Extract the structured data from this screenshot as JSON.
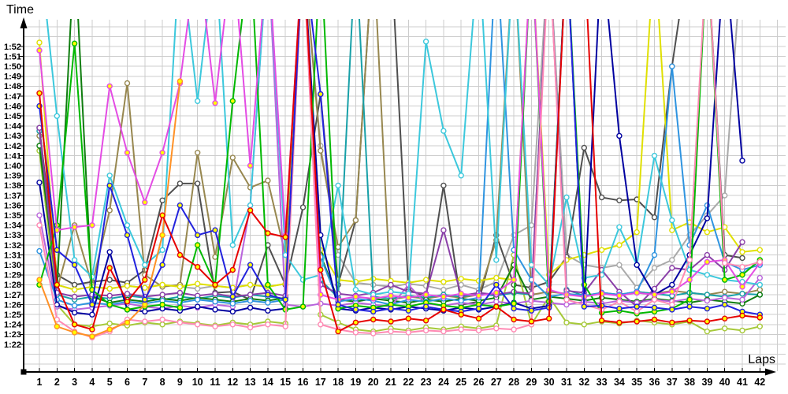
{
  "chart_data": {
    "type": "line",
    "title": "",
    "xlabel": "Laps",
    "ylabel": "Time",
    "x": [
      1,
      2,
      3,
      4,
      5,
      6,
      7,
      8,
      9,
      10,
      11,
      12,
      13,
      14,
      15,
      16,
      17,
      18,
      19,
      20,
      21,
      22,
      23,
      24,
      25,
      26,
      27,
      28,
      29,
      30,
      31,
      32,
      33,
      34,
      35,
      36,
      37,
      38,
      39,
      40,
      41,
      42
    ],
    "y_tick_labels": [
      "1:22",
      "1:23",
      "1:24",
      "1:25",
      "1:26",
      "1:27",
      "1:28",
      "1:29",
      "1:30",
      "1:31",
      "1:32",
      "1:33",
      "1:34",
      "1:35",
      "1:36",
      "1:37",
      "1:38",
      "1:39",
      "1:40",
      "1:41",
      "1:42",
      "1:43",
      "1:44",
      "1:45",
      "1:46",
      "1:47",
      "1:48",
      "1:49",
      "1:50",
      "1:51",
      "1:52"
    ],
    "y_unit": "m:ss (values stored as total seconds)",
    "ylim_seconds": [
      82,
      112
    ],
    "grid": true,
    "legend": "none",
    "note": "Lap-time chart, one line per driver (no legend shown). Values are lap times in seconds (82 = 1:22). Values of 122 represent spikes that go above the visible scale (pit stops / incidents); null = no lap recorded.",
    "layout_hints": {
      "background": "#ffffff",
      "grid_color": "#cccccc",
      "axis_color": "#000000",
      "marker": "open circles on every lap"
    },
    "series": [
      {
        "name": "gray",
        "color": "#a9a9a9",
        "marker_fill": "#ffffff",
        "values": [
          103.5,
          88,
          87.5,
          87.8,
          87.6,
          87.9,
          87.7,
          88,
          87.8,
          87.6,
          87.9,
          87.7,
          88,
          87.8,
          88.1,
          122,
          102,
          91,
          88.2,
          88,
          87.8,
          88.1,
          87.9,
          87.5,
          88,
          87.5,
          88.3,
          93,
          94,
          122,
          91,
          90,
          89.7,
          90,
          87.7,
          89.7,
          90.5,
          93,
          95,
          97,
          122,
          null
        ]
      },
      {
        "name": "charcoal",
        "color": "#4f4f4f",
        "marker_fill": "#ffffff",
        "values": [
          103.8,
          89,
          88,
          88.3,
          88.5,
          88.2,
          89.5,
          96.5,
          98.2,
          98.2,
          87.2,
          87.3,
          86.5,
          92,
          88,
          95.8,
          107.2,
          88,
          94.5,
          122,
          122,
          87.5,
          86.8,
          98,
          86,
          86.3,
          93,
          88,
          87.7,
          88.3,
          90.8,
          101.8,
          96.8,
          96.5,
          96.6,
          94.8,
          110,
          122,
          122,
          91,
          90.7,
          null
        ]
      },
      {
        "name": "olive",
        "color": "#97874f",
        "marker_fill": "#ffffff",
        "values": [
          103,
          87.5,
          94,
          88,
          95.5,
          108.3,
          89,
          87.8,
          88,
          101.3,
          90.8,
          100.8,
          97.8,
          98.5,
          91,
          122,
          101.5,
          91.8,
          94.5,
          122,
          86.5,
          86.8,
          86.6,
          86.9,
          86.7,
          87,
          92.5,
          122,
          87,
          87.3,
          87.1,
          86.9,
          87.2,
          87,
          87.3,
          87.1,
          87.4,
          87.2,
          87,
          87.3,
          87.1,
          87.5
        ]
      },
      {
        "name": "yellow",
        "color": "#e0e000",
        "marker_fill": "#ffffff",
        "values": [
          112.4,
          88,
          87.5,
          87.8,
          87.6,
          87.9,
          87.7,
          88,
          87.8,
          88.1,
          87.9,
          87.7,
          88,
          87.8,
          88.1,
          122,
          91.5,
          88.5,
          88.3,
          88.6,
          88.4,
          88.2,
          88.5,
          88.3,
          88.6,
          88.4,
          88.7,
          88.5,
          122,
          89,
          90.5,
          91,
          91.5,
          92,
          93.3,
          122,
          93.5,
          94.3,
          93.3,
          93.8,
          91.3,
          91.5
        ]
      },
      {
        "name": "lightgreen",
        "color": "#a6c939",
        "marker_fill": "#ffffff",
        "values": [
          101.5,
          86,
          84,
          83.8,
          84.1,
          83.9,
          84.2,
          84,
          84.3,
          84.1,
          83.9,
          84.2,
          84,
          84.3,
          84.1,
          122,
          85,
          84.2,
          83.5,
          83.3,
          83.6,
          83.4,
          83.7,
          83.5,
          83.8,
          83.6,
          83.9,
          91,
          84,
          86.8,
          84.2,
          84,
          84.3,
          84.1,
          84.4,
          84.2,
          84,
          84.3,
          83.3,
          83.6,
          83.4,
          83.8
        ]
      },
      {
        "name": "teal",
        "color": "#18a0a8",
        "marker_fill": "#ffffff",
        "values": [
          103.5,
          87,
          86.5,
          86.8,
          86.6,
          86.9,
          86.7,
          86.5,
          86.8,
          86.6,
          86.9,
          86.7,
          87,
          86.8,
          86.6,
          122,
          88.5,
          86.7,
          122,
          86.8,
          86.6,
          86.9,
          86.7,
          87,
          86.8,
          87.1,
          86.9,
          87.2,
          87,
          122,
          87.5,
          86.9,
          87.2,
          87,
          87.3,
          87.1,
          86.9,
          87.2,
          87,
          86.8,
          87.1,
          87
        ]
      },
      {
        "name": "darkgreen",
        "color": "#0f7d0f",
        "marker_fill": "#ffffff",
        "values": [
          102,
          87.5,
          122,
          86.8,
          86.2,
          86.5,
          86.3,
          86.6,
          86.4,
          86.7,
          86.5,
          86.3,
          86.6,
          86.4,
          86.7,
          122,
          91,
          86.5,
          86.3,
          86.6,
          86.4,
          86.2,
          86.5,
          86.3,
          86.6,
          86.4,
          86.7,
          90,
          86.5,
          86.8,
          86.6,
          86.4,
          86.7,
          86.5,
          86.3,
          86.6,
          86.4,
          86.2,
          86.5,
          86.3,
          86.1,
          87
        ]
      },
      {
        "name": "orchid",
        "color": "#b964dc",
        "marker_fill": "#ffffff",
        "values": [
          95,
          85.8,
          85.5,
          85.7,
          85.9,
          86.1,
          85.8,
          85.6,
          85.9,
          85.7,
          86,
          85.8,
          96,
          122,
          86,
          85.8,
          86.1,
          85.9,
          86.2,
          86,
          85.8,
          88,
          86.1,
          85.9,
          86.2,
          86,
          86.3,
          86.1,
          86.4,
          86.2,
          86,
          86.3,
          86.1,
          86.4,
          86.2,
          86.5,
          86.3,
          86.6,
          86.4,
          86.7,
          86.5,
          88.7
        ]
      },
      {
        "name": "purple",
        "color": "#8a3fa8",
        "marker_fill": "#ffffff",
        "values": [
          103.8,
          87.2,
          86.8,
          87,
          86.9,
          87.1,
          86.8,
          87,
          87.2,
          86.9,
          87.1,
          86.8,
          87,
          87.2,
          86.9,
          122,
          88,
          87.1,
          86.9,
          87.2,
          88,
          87.3,
          87.1,
          93.5,
          86.9,
          87.2,
          87,
          87.3,
          87.1,
          122,
          87.4,
          87.2,
          89.5,
          87.3,
          85.8,
          87.6,
          89.7,
          89.5,
          91,
          89.5,
          92.3,
          null
        ]
      },
      {
        "name": "steelblue",
        "color": "#2f94e0",
        "marker_fill": "#ffffff",
        "values": [
          91.4,
          86.5,
          85.9,
          86.2,
          86,
          86.3,
          86.1,
          86.4,
          86.2,
          86.5,
          86.3,
          86.1,
          86.4,
          86.2,
          86.5,
          122,
          90.8,
          86.3,
          86.6,
          86.4,
          86,
          86.5,
          86.3,
          86.6,
          86.4,
          86.7,
          122,
          91.5,
          88.5,
          86.8,
          87.1,
          86.9,
          87.2,
          87,
          87.3,
          91,
          110,
          92,
          96,
          90.3,
          89.5,
          90
        ]
      },
      {
        "name": "cyan",
        "color": "#3cc8dc",
        "marker_fill": "#ffffff",
        "values": [
          122,
          105,
          90.5,
          88.8,
          99,
          94,
          90,
          91.5,
          122,
          106.5,
          122,
          92,
          96,
          122,
          91,
          88.5,
          89,
          98,
          87.5,
          87,
          87.3,
          87.1,
          112.5,
          103.5,
          99,
          122,
          90.5,
          122,
          90,
          88,
          96.8,
          88.7,
          89,
          93.8,
          90,
          101,
          94.5,
          89.5,
          89,
          88.5,
          88.3,
          88
        ]
      },
      {
        "name": "navy",
        "color": "#0000a0",
        "marker_fill": "#ffffff",
        "values": [
          98.3,
          86,
          85.2,
          85,
          91.3,
          85.5,
          85.3,
          85.6,
          85.4,
          85.8,
          85.5,
          85.3,
          85.7,
          85.4,
          85.6,
          122,
          93,
          85.6,
          85.4,
          85.7,
          85.5,
          85.8,
          85.6,
          85.4,
          85.7,
          85.5,
          85.8,
          86.2,
          85.6,
          85.9,
          122,
          86,
          122,
          103,
          90,
          87,
          88,
          91,
          94.7,
          122,
          100.5,
          null
        ]
      },
      {
        "name": "green",
        "color": "#00b800",
        "marker_fill": "#ffff00",
        "values": [
          88,
          94,
          112.3,
          87.5,
          86,
          85.5,
          85.8,
          86,
          85.7,
          92,
          88,
          106.5,
          122,
          88,
          85.5,
          85.8,
          122,
          85.6,
          85.9,
          85.7,
          86,
          85.8,
          86.2,
          85.9,
          85.7,
          86,
          85.8,
          86.1,
          122,
          86.3,
          122,
          88,
          85.2,
          85.4,
          85.1,
          85.3,
          85.6,
          86.5,
          122,
          88.5,
          89,
          90.5
        ]
      },
      {
        "name": "magenta",
        "color": "#e44ce4",
        "marker_fill": "#ffff00",
        "values": [
          111.6,
          93.5,
          93.8,
          94,
          108,
          101.3,
          96.3,
          101.3,
          108.3,
          122,
          106.3,
          122,
          100,
          122,
          93,
          122,
          87,
          86.5,
          86.8,
          86.6,
          86.9,
          86.7,
          87,
          86.8,
          87.1,
          86.9,
          87.2,
          88.5,
          122,
          87.5,
          87,
          86.8,
          87.1,
          86.9,
          87.2,
          87,
          87.3,
          88.5,
          90.3,
          90.5,
          87.8,
          90.2
        ]
      },
      {
        "name": "pink",
        "color": "#ff8ab4",
        "marker_fill": "#ffffff",
        "values": [
          94,
          84.5,
          83.3,
          82.7,
          83.3,
          84.5,
          84.3,
          84.5,
          84.2,
          84,
          83.8,
          84,
          83.7,
          84,
          83.8,
          122,
          84,
          83.5,
          83.2,
          83.1,
          83.3,
          83.2,
          83.4,
          83.3,
          83.5,
          83.4,
          83.6,
          83.5,
          84,
          122,
          86.5,
          86,
          85.5,
          86.3,
          85.3,
          86.5,
          86,
          90.5,
          122,
          90.2,
          89.8,
          90.3
        ]
      },
      {
        "name": "orange",
        "color": "#ff9126",
        "marker_fill": "#ffff00",
        "values": [
          88.5,
          83.8,
          83.2,
          82.8,
          83.5,
          84.2,
          86,
          93,
          108.5,
          null,
          null,
          null,
          null,
          null,
          null,
          null,
          null,
          null,
          null,
          null,
          null,
          null,
          null,
          null,
          null,
          null,
          null,
          null,
          null,
          null,
          null,
          null,
          null,
          null,
          null,
          null,
          null,
          null,
          null,
          null,
          null,
          null
        ]
      },
      {
        "name": "blue",
        "color": "#2222dd",
        "marker_fill": "#ffff00",
        "values": [
          106,
          91.5,
          90,
          86,
          98,
          93,
          86.5,
          90,
          96,
          93,
          93.5,
          86.8,
          90,
          87,
          86.5,
          122,
          107.2,
          86,
          85.5,
          85.3,
          85.6,
          85.4,
          85.8,
          85.5,
          85.3,
          85.6,
          88,
          85.6,
          85.4,
          85.7,
          122,
          85.8,
          85.9,
          85.6,
          85.8,
          85.7,
          85.5,
          85.8,
          85.6,
          86,
          85.3,
          85
        ]
      },
      {
        "name": "red",
        "color": "#e60000",
        "marker_fill": "#ffff00",
        "values": [
          107.3,
          88,
          84,
          83.5,
          89.7,
          86.3,
          88.5,
          95,
          91,
          89.8,
          88,
          89.5,
          95.5,
          93.2,
          92.8,
          122,
          89.5,
          83.3,
          84.2,
          84.5,
          84.3,
          84.6,
          84.4,
          85.5,
          85,
          84.6,
          85.8,
          84.5,
          84.3,
          84.6,
          122,
          122,
          84.4,
          84.2,
          84.3,
          84.5,
          84.2,
          84.4,
          84.3,
          84.6,
          84.9,
          84.7
        ]
      }
    ]
  }
}
